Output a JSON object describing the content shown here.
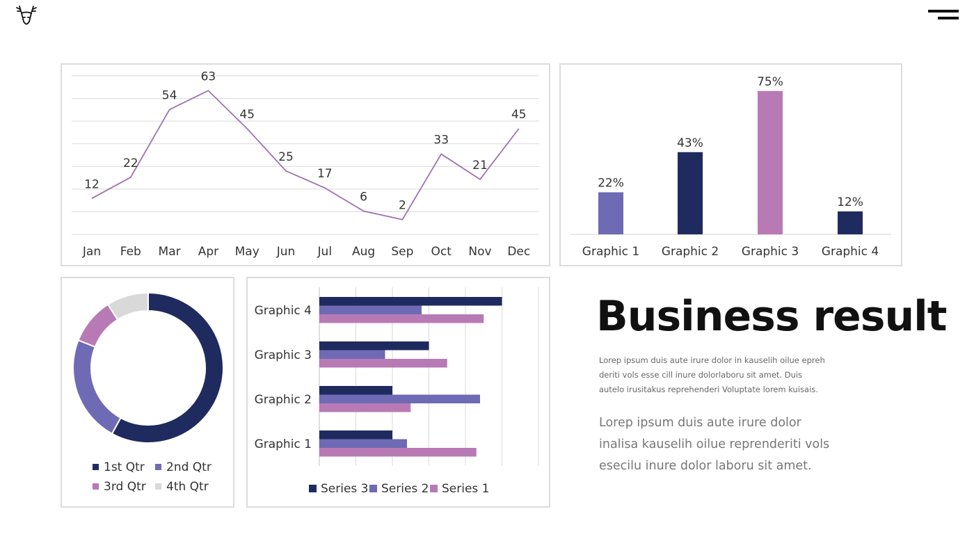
{
  "header": {
    "logo_icon": "deer-head-icon",
    "menu_icon": "hamburger-menu-icon"
  },
  "chart_data": [
    {
      "type": "line",
      "categories": [
        "Jan",
        "Feb",
        "Mar",
        "Apr",
        "May",
        "Jun",
        "Jul",
        "Aug",
        "Sep",
        "Oct",
        "Nov",
        "Dec"
      ],
      "values": [
        12,
        22,
        54,
        63,
        45,
        25,
        17,
        6,
        2,
        33,
        21,
        45
      ],
      "value_labels": [
        "12",
        "22",
        "54",
        "63",
        "45",
        "25",
        "17",
        "6",
        "2",
        "33",
        "21",
        "45"
      ],
      "ylim": [
        -5,
        70
      ],
      "gridlines": 8,
      "color": "#a070b0"
    },
    {
      "type": "bar",
      "categories": [
        "Graphic 1",
        "Graphic 2",
        "Graphic 3",
        "Graphic 4"
      ],
      "values": [
        22,
        43,
        75,
        12
      ],
      "value_labels": [
        "22%",
        "43%",
        "75%",
        "12%"
      ],
      "unit": "%",
      "colors": [
        "#6f6ab4",
        "#1f2b5e",
        "#b87ab5",
        "#1f2b5e"
      ]
    },
    {
      "type": "pie",
      "subtype": "donut",
      "categories": [
        "1st Qtr",
        "2nd Qtr",
        "3rd Qtr",
        "4th Qtr"
      ],
      "values": [
        58,
        23,
        10,
        9
      ],
      "colors": [
        "#1f2b5e",
        "#6f6ab4",
        "#b87ab5",
        "#d9d9d9"
      ],
      "legend": [
        "1st Qtr",
        "2nd Qtr",
        "3rd Qtr",
        "4th Qtr"
      ]
    },
    {
      "type": "bar",
      "orientation": "horizontal",
      "categories": [
        "Graphic 1",
        "Graphic 2",
        "Graphic 3",
        "Graphic 4"
      ],
      "series": [
        {
          "name": "Series 3",
          "values": [
            2.0,
            2.0,
            3.0,
            5.0
          ],
          "color": "#1f2b5e"
        },
        {
          "name": "Series 2",
          "values": [
            2.4,
            4.4,
            1.8,
            2.8
          ],
          "color": "#6f6ab4"
        },
        {
          "name": "Series 1",
          "values": [
            4.3,
            2.5,
            3.5,
            4.5
          ],
          "color": "#b87ab5"
        }
      ],
      "xlim": [
        0,
        6
      ]
    }
  ],
  "text": {
    "title": "Business result",
    "paragraph_small": "Lorep  ipsum duis aute irure dolor in kauselih oilue epreh deriti vols esse cill inure dolorlaboru sit amet. Duis autelo irusitakus reprehenderi Voluptate lorem kuisais.",
    "paragraph_large": "Lorep  ipsum duis aute irure dolor inalisa kauselih oilue reprenderiti vols esecilu inure dolor laboru sit amet."
  }
}
